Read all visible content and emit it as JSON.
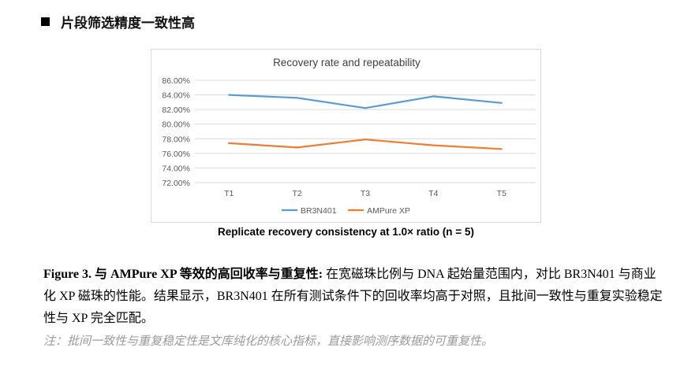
{
  "section": {
    "bullet_icon": "black-square-bullet-icon",
    "title": "片段筛选精度一致性高"
  },
  "chart_data": {
    "type": "line",
    "title": "Recovery rate and repeatability",
    "xlabel": "",
    "ylabel": "",
    "categories": [
      "T1",
      "T2",
      "T3",
      "T4",
      "T5"
    ],
    "ylim": [
      72,
      86
    ],
    "yticks": [
      86,
      84,
      82,
      80,
      78,
      76,
      74,
      72
    ],
    "ytick_labels": [
      "86.00%",
      "84.00%",
      "82.00%",
      "80.00%",
      "78.00%",
      "76.00%",
      "74.00%",
      "72.00%"
    ],
    "grid": true,
    "legend_position": "bottom",
    "series": [
      {
        "name": "BR3N401",
        "color": "#5b9bd5",
        "values": [
          84.0,
          83.6,
          82.2,
          83.8,
          82.9
        ]
      },
      {
        "name": "AMPure XP",
        "color": "#ed7d31",
        "values": [
          77.4,
          76.8,
          77.9,
          77.1,
          76.6
        ]
      }
    ]
  },
  "chart_caption": "Replicate recovery consistency at 1.0× ratio (n = 5)",
  "figure": {
    "label": "Figure 3.  与 AMPure XP 等效的高回收率与重复性:",
    "text": " 在宽磁珠比例与 DNA 起始量范围内，对比 BR3N401 与商业化 XP 磁珠的性能。结果显示，BR3N401 在所有测试条件下的回收率均高于对照，且批间一致性与重复实验稳定性与 XP 完全匹配。",
    "note": "注：批间一致性与重复稳定性是文库纯化的核心指标，直接影响测序数据的可重复性。"
  }
}
